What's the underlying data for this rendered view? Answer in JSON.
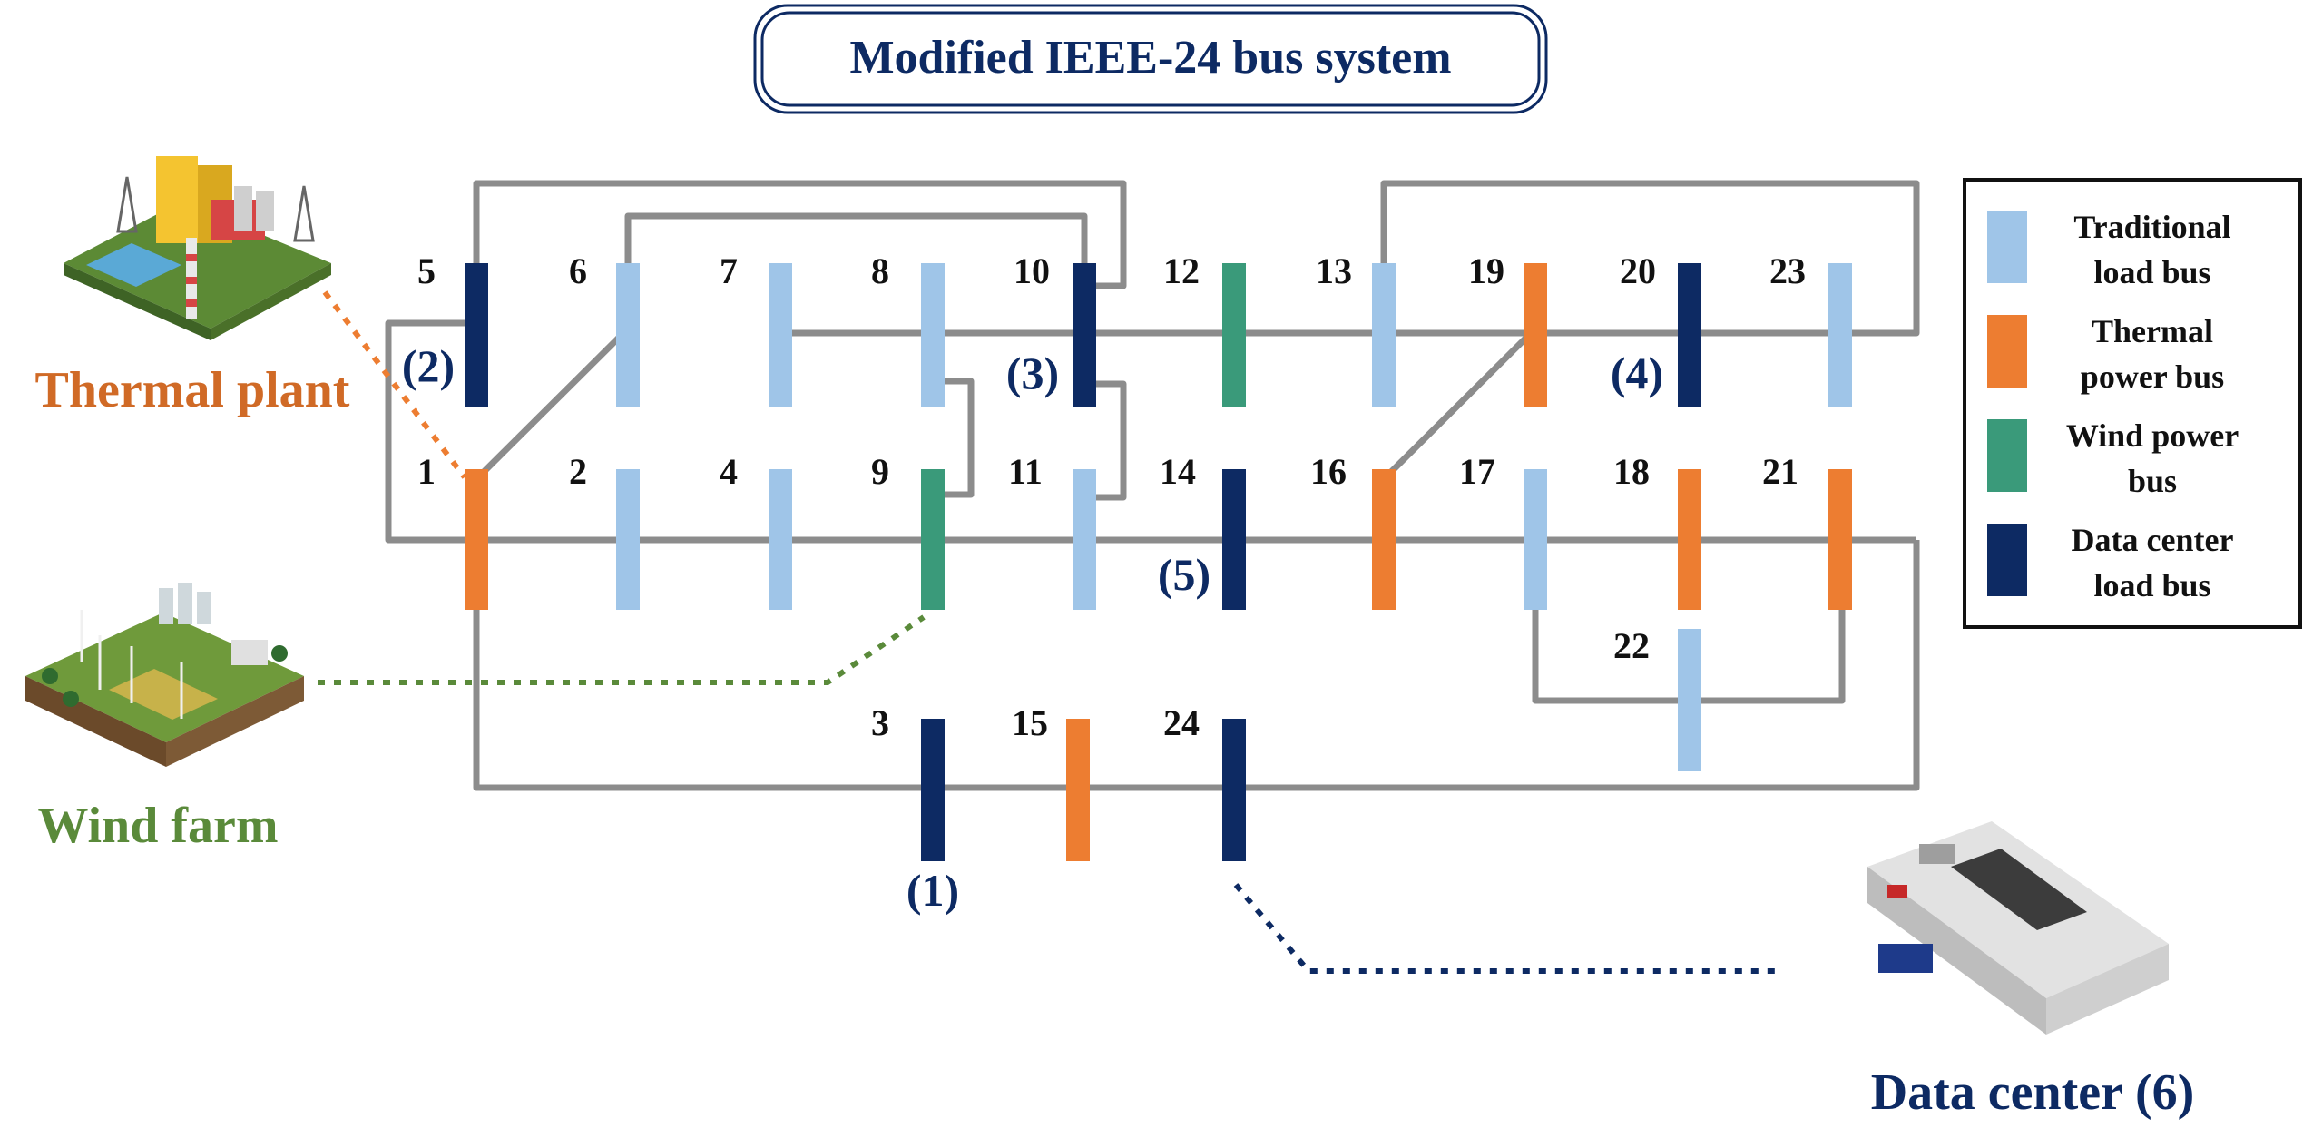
{
  "title": "Modified IEEE-24 bus system",
  "colors": {
    "traditional_load": "#9fc5e8",
    "thermal_power": "#ed7d31",
    "wind_power": "#3a9a7a",
    "data_center": "#0d2a63",
    "line": "#8c8c8c",
    "thermal_label": "#d06a26",
    "wind_label": "#5a8a3a",
    "dc_label": "#0d2a63"
  },
  "buses": [
    {
      "id": "5",
      "type": "data_center"
    },
    {
      "id": "6",
      "type": "traditional_load"
    },
    {
      "id": "7",
      "type": "traditional_load"
    },
    {
      "id": "8",
      "type": "traditional_load"
    },
    {
      "id": "10",
      "type": "data_center"
    },
    {
      "id": "12",
      "type": "wind_power"
    },
    {
      "id": "13",
      "type": "traditional_load"
    },
    {
      "id": "19",
      "type": "thermal_power"
    },
    {
      "id": "20",
      "type": "data_center"
    },
    {
      "id": "23",
      "type": "traditional_load"
    },
    {
      "id": "1",
      "type": "thermal_power"
    },
    {
      "id": "2",
      "type": "traditional_load"
    },
    {
      "id": "4",
      "type": "traditional_load"
    },
    {
      "id": "9",
      "type": "wind_power"
    },
    {
      "id": "11",
      "type": "traditional_load"
    },
    {
      "id": "14",
      "type": "data_center"
    },
    {
      "id": "16",
      "type": "thermal_power"
    },
    {
      "id": "17",
      "type": "traditional_load"
    },
    {
      "id": "18",
      "type": "thermal_power"
    },
    {
      "id": "21",
      "type": "thermal_power"
    },
    {
      "id": "22",
      "type": "traditional_load"
    },
    {
      "id": "3",
      "type": "data_center"
    },
    {
      "id": "15",
      "type": "thermal_power"
    },
    {
      "id": "24",
      "type": "data_center"
    }
  ],
  "data_center_labels": [
    "(1)",
    "(2)",
    "(3)",
    "(4)",
    "(5)"
  ],
  "legend": [
    {
      "type": "traditional_load",
      "line1": "Traditional",
      "line2": "load bus"
    },
    {
      "type": "thermal_power",
      "line1": "Thermal",
      "line2": "power bus"
    },
    {
      "type": "wind_power",
      "line1": "Wind power",
      "line2": "bus"
    },
    {
      "type": "data_center",
      "line1": "Data center",
      "line2": "load bus"
    }
  ],
  "sources": {
    "thermal": "Thermal plant",
    "wind": "Wind farm",
    "datacenter": "Data center (6)"
  }
}
